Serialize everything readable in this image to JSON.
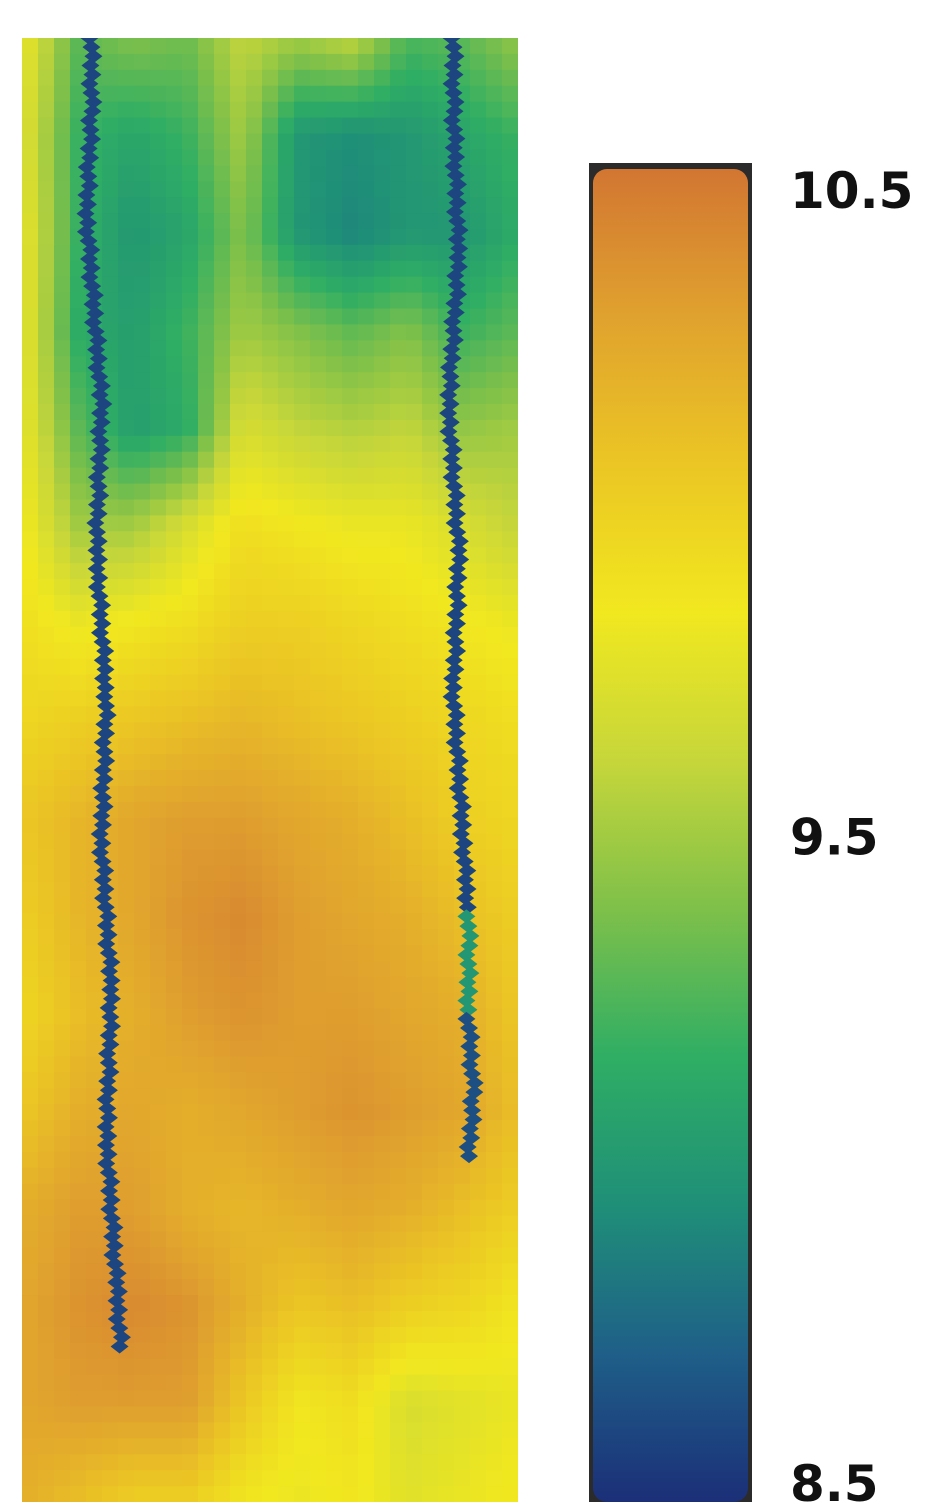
{
  "chart_data": {
    "type": "heatmap",
    "title": "",
    "xlabel": "",
    "ylabel": "",
    "colorbar": {
      "min": 8.5,
      "max": 10.5,
      "tick_values": [
        10.5,
        9.5,
        8.5
      ],
      "tick_labels": [
        "10.5",
        "9.5",
        "8.5"
      ],
      "colormap": [
        "#1b2f78",
        "#1f5f88",
        "#1f8f78",
        "#2fae64",
        "#7ec04a",
        "#c6d63a",
        "#f1e81f",
        "#ebc624",
        "#e0a22e",
        "#d27632"
      ]
    },
    "field_rows_top_to_bottom": [
      [
        9.8,
        9.3,
        9.4,
        9.35,
        9.6,
        9.5,
        9.6,
        9.25,
        9.3,
        9.45
      ],
      [
        9.75,
        9.2,
        9.1,
        9.2,
        9.5,
        9.0,
        8.95,
        9.0,
        9.1,
        9.2
      ],
      [
        9.8,
        9.2,
        9.0,
        9.1,
        9.4,
        9.0,
        8.9,
        9.0,
        9.0,
        9.15
      ],
      [
        9.8,
        9.15,
        9.05,
        9.2,
        9.5,
        9.4,
        9.3,
        9.4,
        9.2,
        9.3
      ],
      [
        9.8,
        9.3,
        9.05,
        9.15,
        9.7,
        9.6,
        9.55,
        9.6,
        9.45,
        9.5
      ],
      [
        9.85,
        9.5,
        9.5,
        9.7,
        9.9,
        9.85,
        9.8,
        9.8,
        9.7,
        9.6
      ],
      [
        9.9,
        9.8,
        9.85,
        9.9,
        10.0,
        10.0,
        9.95,
        9.9,
        9.85,
        9.8
      ],
      [
        9.95,
        10.0,
        10.05,
        10.1,
        10.15,
        10.1,
        10.05,
        10.0,
        9.95,
        9.9
      ],
      [
        10.05,
        10.15,
        10.25,
        10.3,
        10.3,
        10.25,
        10.2,
        10.1,
        10.0,
        9.95
      ],
      [
        10.0,
        10.15,
        10.25,
        10.35,
        10.4,
        10.3,
        10.25,
        10.2,
        10.1,
        10.0
      ],
      [
        9.95,
        10.1,
        10.2,
        10.3,
        10.35,
        10.3,
        10.3,
        10.25,
        10.2,
        10.05
      ],
      [
        10.05,
        10.2,
        10.25,
        10.2,
        10.25,
        10.3,
        10.35,
        10.3,
        10.25,
        10.1
      ],
      [
        10.2,
        10.3,
        10.3,
        10.2,
        10.15,
        10.2,
        10.25,
        10.2,
        10.1,
        10.0
      ],
      [
        10.25,
        10.35,
        10.4,
        10.35,
        10.2,
        10.05,
        10.1,
        10.0,
        9.95,
        9.85
      ],
      [
        10.25,
        10.3,
        10.3,
        10.3,
        10.05,
        9.85,
        9.9,
        9.7,
        9.75,
        9.8
      ],
      [
        10.2,
        10.1,
        10.0,
        10.0,
        9.85,
        9.8,
        9.85,
        9.75,
        9.8,
        9.85
      ]
    ],
    "low_value_lines": [
      {
        "value": 8.6,
        "points": [
          [
            0.14,
            0.0
          ],
          [
            0.14,
            0.05
          ],
          [
            0.13,
            0.12
          ],
          [
            0.16,
            0.25
          ],
          [
            0.15,
            0.35
          ],
          [
            0.17,
            0.45
          ],
          [
            0.16,
            0.55
          ],
          [
            0.18,
            0.65
          ],
          [
            0.17,
            0.75
          ],
          [
            0.19,
            0.85
          ],
          [
            0.2,
            0.9
          ]
        ]
      },
      {
        "value": 8.6,
        "points": [
          [
            0.87,
            0.0
          ],
          [
            0.87,
            0.05
          ],
          [
            0.88,
            0.15
          ],
          [
            0.86,
            0.25
          ],
          [
            0.88,
            0.35
          ],
          [
            0.87,
            0.45
          ],
          [
            0.89,
            0.55
          ],
          [
            0.9,
            0.6
          ]
        ]
      },
      {
        "value": 9.0,
        "points": [
          [
            0.9,
            0.6
          ],
          [
            0.9,
            0.62
          ],
          [
            0.9,
            0.67
          ]
        ]
      },
      {
        "value": 8.65,
        "points": [
          [
            0.9,
            0.67
          ],
          [
            0.91,
            0.72
          ],
          [
            0.9,
            0.77
          ]
        ]
      }
    ]
  }
}
